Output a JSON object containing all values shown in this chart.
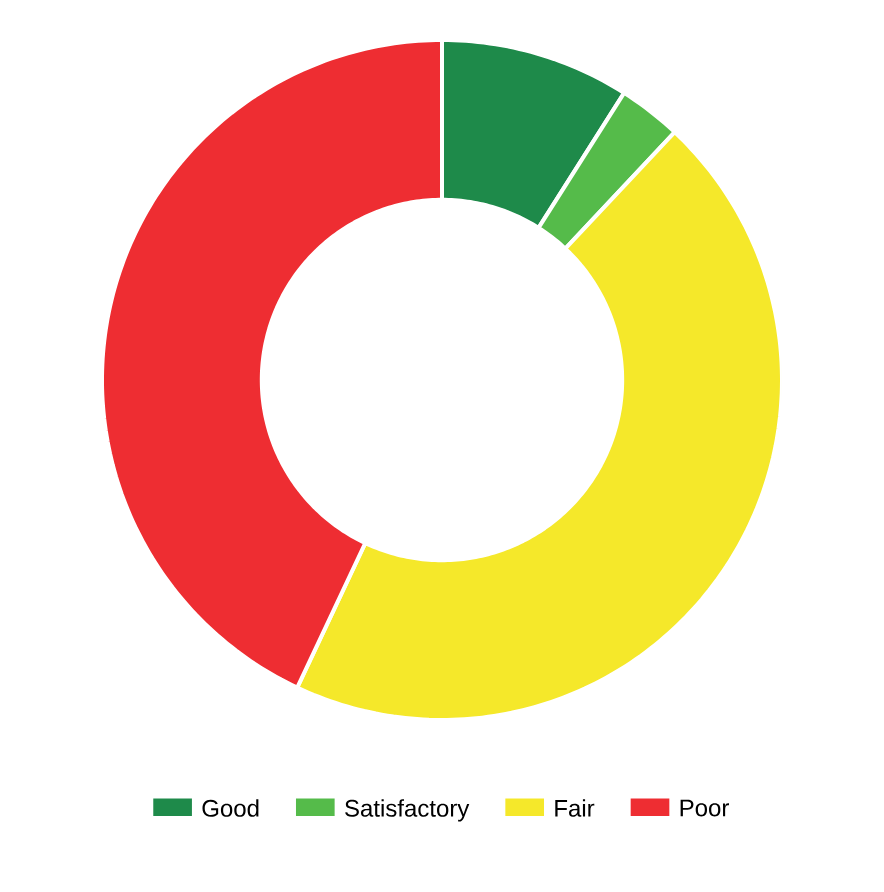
{
  "chart_data": {
    "type": "donut",
    "categories": [
      "Good",
      "Satisfactory",
      "Fair",
      "Poor"
    ],
    "values": [
      9,
      3,
      45,
      43
    ],
    "colors": [
      "#1e8a4a",
      "#55bb4a",
      "#f5e82a",
      "#ee2d32"
    ],
    "legend": "bottom"
  }
}
